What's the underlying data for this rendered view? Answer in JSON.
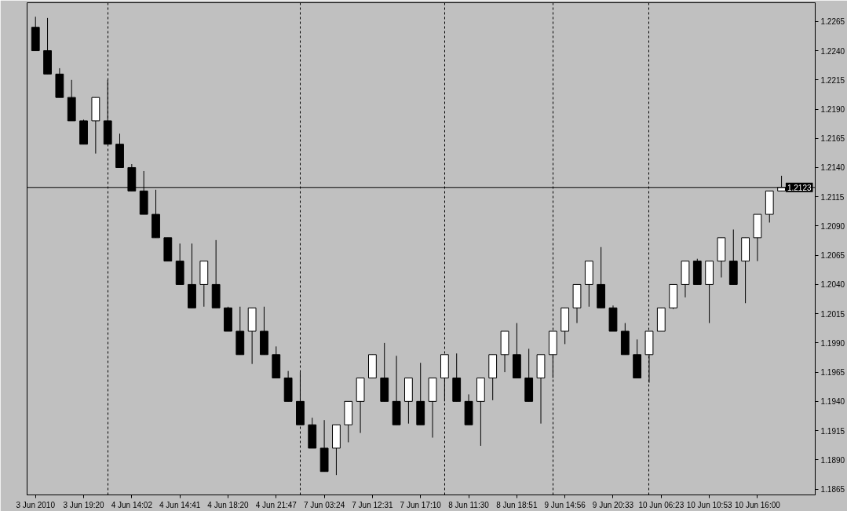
{
  "chart_data": {
    "type": "candlestick",
    "categories": [
      "3 Jun 2010",
      null,
      null,
      null,
      "3 Jun 19:20",
      null,
      null,
      null,
      "4 Jun 14:02",
      null,
      null,
      null,
      "4 Jun 14:41",
      null,
      null,
      null,
      "4 Jun 18:20",
      null,
      null,
      null,
      "4 Jun 21:47",
      null,
      null,
      null,
      "7 Jun 03:24",
      null,
      null,
      null,
      "7 Jun 12:31",
      null,
      null,
      null,
      "7 Jun 17:10",
      null,
      null,
      null,
      "8 Jun 11:30",
      null,
      null,
      null,
      "8 Jun 18:51",
      null,
      null,
      null,
      "9 Jun 14:56",
      null,
      null,
      null,
      "9 Jun 20:33",
      null,
      null,
      null,
      "10 Jun 06:23",
      null,
      null,
      null,
      "10 Jun 10:53",
      null,
      null,
      null,
      "10 Jun 16:00",
      null,
      null
    ],
    "ohlc": [
      [
        1.226,
        1.2269,
        1.224,
        1.224
      ],
      [
        1.224,
        1.2268,
        1.222,
        1.222
      ],
      [
        1.222,
        1.2225,
        1.22,
        1.22
      ],
      [
        1.22,
        1.2215,
        1.218,
        1.218
      ],
      [
        1.218,
        1.2181,
        1.216,
        1.216
      ],
      [
        1.218,
        1.22,
        1.2152,
        1.22
      ],
      [
        1.218,
        1.2215,
        1.216,
        1.216
      ],
      [
        1.216,
        1.2169,
        1.214,
        1.214
      ],
      [
        1.214,
        1.2143,
        1.212,
        1.212
      ],
      [
        1.212,
        1.2137,
        1.21,
        1.21
      ],
      [
        1.21,
        1.2121,
        1.208,
        1.208
      ],
      [
        1.208,
        1.208,
        1.206,
        1.206
      ],
      [
        1.206,
        1.2075,
        1.204,
        1.204
      ],
      [
        1.204,
        1.2075,
        1.202,
        1.202
      ],
      [
        1.204,
        1.206,
        1.2021,
        1.206
      ],
      [
        1.204,
        1.2078,
        1.202,
        1.202
      ],
      [
        1.202,
        1.2021,
        1.2,
        1.2
      ],
      [
        1.2,
        1.2021,
        1.198,
        1.198
      ],
      [
        1.2,
        1.202,
        1.1972,
        1.202
      ],
      [
        1.2,
        1.2021,
        1.198,
        1.198
      ],
      [
        1.198,
        1.1987,
        1.196,
        1.196
      ],
      [
        1.196,
        1.1966,
        1.194,
        1.194
      ],
      [
        1.194,
        1.1965,
        1.192,
        1.192
      ],
      [
        1.192,
        1.1926,
        1.19,
        1.19
      ],
      [
        1.19,
        1.1924,
        1.188,
        1.188
      ],
      [
        1.19,
        1.192,
        1.1877,
        1.192
      ],
      [
        1.192,
        1.194,
        1.1905,
        1.194
      ],
      [
        1.194,
        1.196,
        1.1913,
        1.196
      ],
      [
        1.196,
        1.198,
        1.196,
        1.198
      ],
      [
        1.196,
        1.199,
        1.194,
        1.194
      ],
      [
        1.194,
        1.1979,
        1.192,
        1.192
      ],
      [
        1.194,
        1.196,
        1.1921,
        1.196
      ],
      [
        1.194,
        1.1973,
        1.192,
        1.192
      ],
      [
        1.194,
        1.196,
        1.1909,
        1.196
      ],
      [
        1.196,
        1.198,
        1.194,
        1.198
      ],
      [
        1.196,
        1.1981,
        1.194,
        1.194
      ],
      [
        1.194,
        1.1946,
        1.192,
        1.192
      ],
      [
        1.194,
        1.196,
        1.1902,
        1.196
      ],
      [
        1.196,
        1.198,
        1.1941,
        1.198
      ],
      [
        1.198,
        1.2,
        1.1965,
        1.2
      ],
      [
        1.198,
        1.2007,
        1.196,
        1.196
      ],
      [
        1.196,
        1.1985,
        1.194,
        1.194
      ],
      [
        1.196,
        1.198,
        1.1921,
        1.198
      ],
      [
        1.198,
        1.2,
        1.196,
        1.2
      ],
      [
        1.2,
        1.202,
        1.1989,
        1.202
      ],
      [
        1.202,
        1.204,
        1.2007,
        1.204
      ],
      [
        1.204,
        1.206,
        1.2021,
        1.206
      ],
      [
        1.204,
        1.2072,
        1.202,
        1.202
      ],
      [
        1.202,
        1.2022,
        1.2,
        1.2
      ],
      [
        1.2,
        1.2007,
        1.198,
        1.198
      ],
      [
        1.198,
        1.1993,
        1.196,
        1.196
      ],
      [
        1.198,
        1.2,
        1.1956,
        1.2
      ],
      [
        1.2,
        1.202,
        1.2,
        1.202
      ],
      [
        1.202,
        1.204,
        1.2019,
        1.204
      ],
      [
        1.204,
        1.206,
        1.2029,
        1.206
      ],
      [
        1.206,
        1.2062,
        1.204,
        1.204
      ],
      [
        1.204,
        1.206,
        1.2007,
        1.206
      ],
      [
        1.206,
        1.208,
        1.2046,
        1.208
      ],
      [
        1.206,
        1.2087,
        1.204,
        1.204
      ],
      [
        1.206,
        1.208,
        1.2024,
        1.208
      ],
      [
        1.208,
        1.21,
        1.206,
        1.21
      ],
      [
        1.21,
        1.212,
        1.2093,
        1.212
      ],
      [
        1.212,
        1.2133,
        1.212,
        1.2123
      ]
    ],
    "color": "#000000",
    "colors": [
      "#000000",
      "#000000",
      "#000000",
      "#000000",
      "#000000",
      "#ffffff",
      "#000000",
      "#000000",
      "#000000",
      "#000000",
      "#000000",
      "#000000",
      "#000000",
      "#000000",
      "#ffffff",
      "#000000",
      "#000000",
      "#000000",
      "#ffffff",
      "#000000",
      "#000000",
      "#000000",
      "#000000",
      "#000000",
      "#000000",
      "#ffffff",
      "#ffffff",
      "#ffffff",
      "#ffffff",
      "#000000",
      "#000000",
      "#ffffff",
      "#000000",
      "#ffffff",
      "#ffffff",
      "#000000",
      "#000000",
      "#ffffff",
      "#ffffff",
      "#ffffff",
      "#000000",
      "#000000",
      "#ffffff",
      "#ffffff",
      "#ffffff",
      "#ffffff",
      "#ffffff",
      "#000000",
      "#000000",
      "#000000",
      "#000000",
      "#ffffff",
      "#ffffff",
      "#ffffff",
      "#ffffff",
      "#000000",
      "#ffffff",
      "#ffffff",
      "#000000",
      "#ffffff",
      "#ffffff",
      "#ffffff",
      "#ffffff"
    ],
    "ylim": [
      1.186,
      1.2281
    ],
    "yticks": [
      1.1865,
      {
        "value": 1.189,
        "label": "1.1890"
      },
      1.1915,
      {
        "value": 1.194,
        "label": "1.1940"
      },
      1.1965,
      {
        "value": 1.199,
        "label": "1.1990"
      },
      1.2015,
      {
        "value": 1.204,
        "label": "1.2040"
      },
      1.2065,
      {
        "value": 1.209,
        "label": "1.2090"
      },
      1.2115,
      {
        "value": 1.214,
        "label": "1.2140"
      },
      1.2165,
      {
        "value": 1.219,
        "label": "1.2190"
      },
      1.2215,
      {
        "value": 1.224,
        "label": "1.2240"
      },
      1.2265
    ],
    "grid": "x",
    "ref_lines": [
      {
        "axis": "y",
        "value": 1.2123,
        "label": "1.2123",
        "color": "#000000",
        "line_style": "solid"
      }
    ]
  }
}
